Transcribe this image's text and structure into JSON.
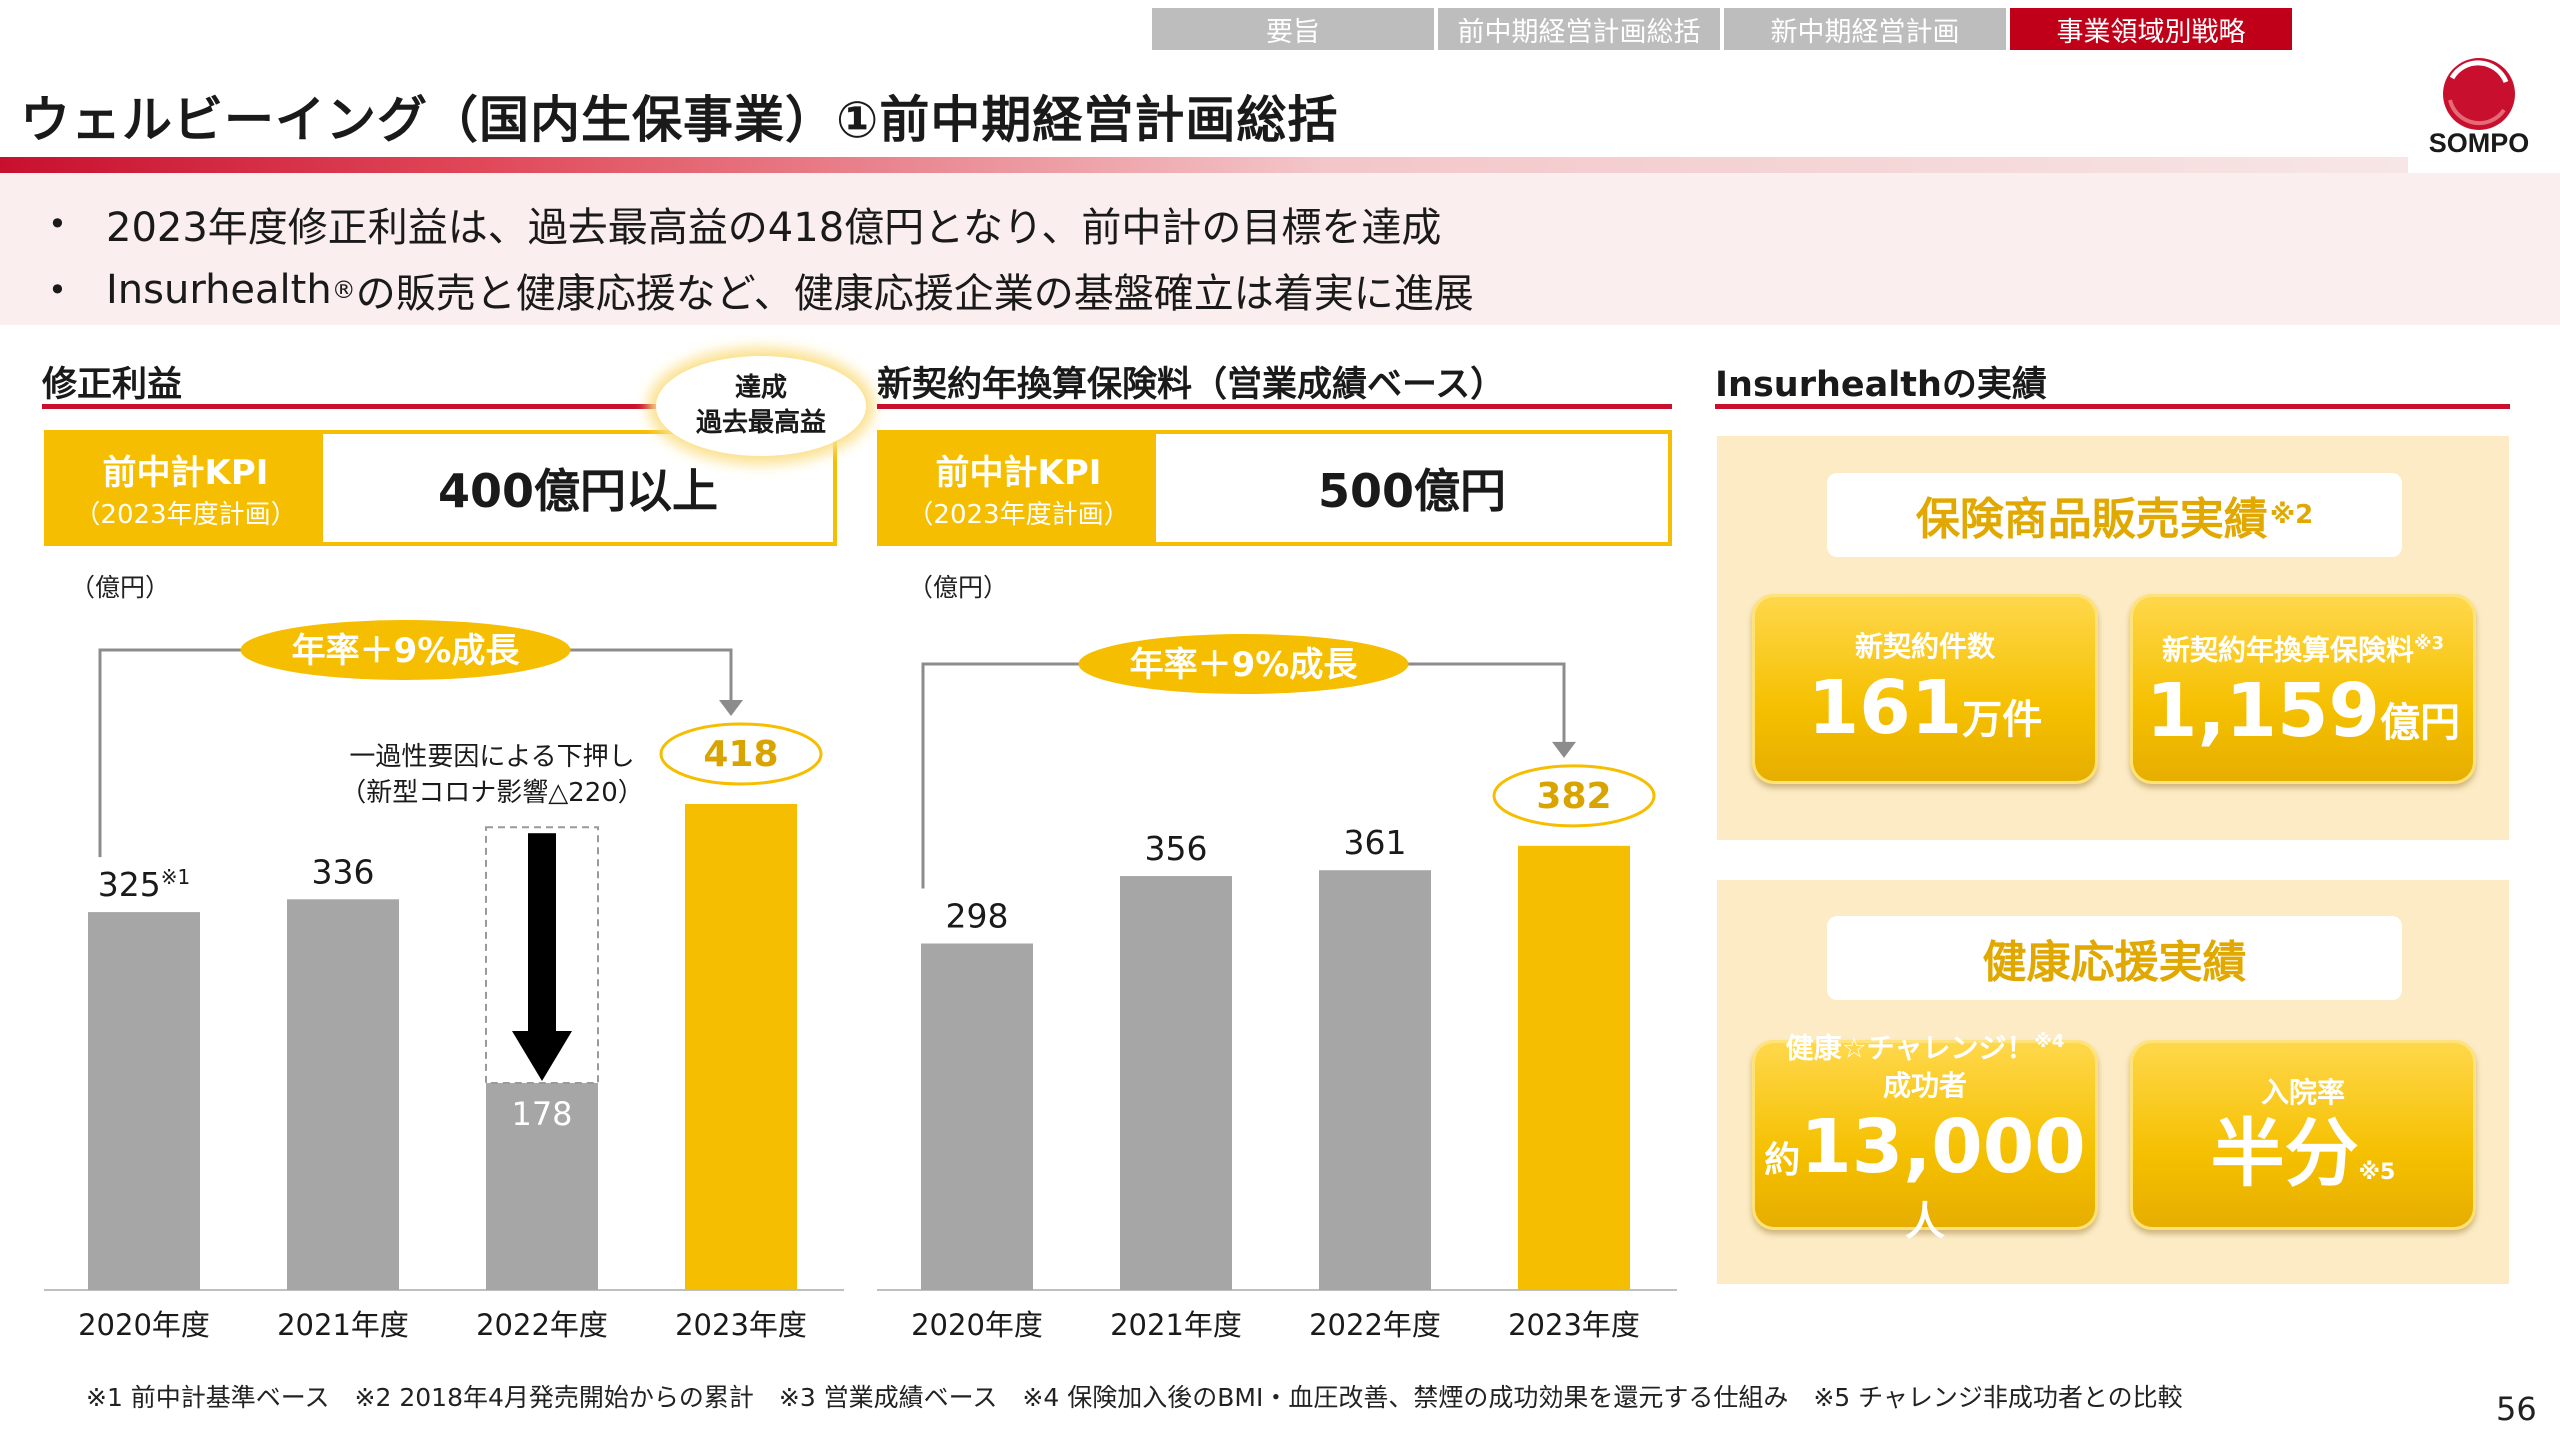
{
  "nav": {
    "tabs": [
      "要旨",
      "前中期経営計画総括",
      "新中期経営計画",
      "事業領域別戦略"
    ],
    "active_index": 3
  },
  "header": {
    "title": "ウェルビーイング（国内生保事業）①前中期経営計画総括",
    "logo_text": "SOMPO"
  },
  "summary": {
    "bullet1": "2023年度修正利益は、過去最高益の418億円となり、前中計の目標を達成",
    "bullet2_pre": "Insurhealth",
    "bullet2_sup": "®",
    "bullet2_post": "の販売と健康応援など、健康応援企業の基盤確立は着実に進展"
  },
  "left": {
    "title": "修正利益",
    "kpi_label": "前中計KPI",
    "kpi_sub": "（2023年度計画）",
    "kpi_value": "400億円以上",
    "badge_line1": "達成",
    "badge_line2": "過去最高益",
    "unit": "（億円）"
  },
  "middle": {
    "title": "新契約年換算保険料（営業成績ベース）",
    "kpi_label": "前中計KPI",
    "kpi_sub": "（2023年度計画）",
    "kpi_value": "500億円",
    "unit": "（億円）"
  },
  "right": {
    "title": "Insurhealthの実績",
    "panel1_title": "保険商品販売実績",
    "panel1_sup": "※2",
    "card1_label": "新契約件数",
    "card1_value": "161",
    "card1_unit": "万件",
    "card2_label": "新契約年換算保険料",
    "card2_sup": "※3",
    "card2_value": "1,159",
    "card2_unit": "億円",
    "panel2_title": "健康応援実績",
    "card3_label": "健康☆チャレンジ！",
    "card3_sup": "※4",
    "card3_label2": "成功者",
    "card3_pre": "約",
    "card3_value": "13,000",
    "card3_unit": "人",
    "card4_label": "入院率",
    "card4_value": "半分",
    "card4_sup": "※5"
  },
  "footnote": "※1 前中計基準ベース　※2 2018年4月発売開始からの累計　※3 営業成績ベース　※4 保険加入後のBMI・血圧改善、禁煙の成功効果を還元する仕組み　※5 チャレンジ非成功者との比較",
  "page_number": "56",
  "colors": {
    "gray_bar": "#a6a6a6",
    "yellow_bar": "#f6be00",
    "red_accent": "#c8102e",
    "kpi_yellow": "#f6be00"
  },
  "chart_data": [
    {
      "type": "bar",
      "title": "修正利益",
      "ylabel": "（億円）",
      "categories": [
        "2020年度",
        "2021年度",
        "2022年度",
        "2023年度"
      ],
      "values": [
        325,
        336,
        178,
        418
      ],
      "value_labels": [
        "325",
        "336",
        "178",
        "418"
      ],
      "value_label_sups": [
        "※1",
        "",
        "",
        ""
      ],
      "highlight_index": 3,
      "ylim": [
        0,
        430
      ],
      "growth_label": "年率＋9%成長",
      "ghost_bar": {
        "index": 2,
        "value": 398,
        "drop": 220
      },
      "annotation_line1": "一過性要因による下押し",
      "annotation_line2": "（新型コロナ影響△220）"
    },
    {
      "type": "bar",
      "title": "新契約年換算保険料（営業成績ベース）",
      "ylabel": "（億円）",
      "categories": [
        "2020年度",
        "2021年度",
        "2022年度",
        "2023年度"
      ],
      "values": [
        298,
        356,
        361,
        382
      ],
      "value_labels": [
        "298",
        "356",
        "361",
        "382"
      ],
      "value_label_sups": [
        "",
        "",
        "",
        ""
      ],
      "highlight_index": 3,
      "ylim": [
        0,
        430
      ],
      "growth_label": "年率＋9%成長"
    }
  ]
}
